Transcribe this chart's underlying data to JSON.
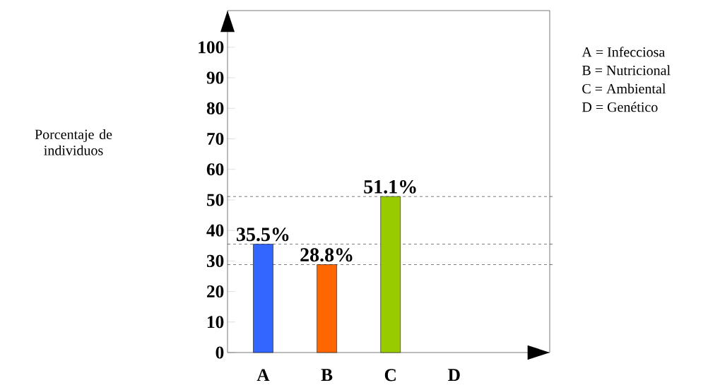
{
  "chart_data": {
    "type": "bar",
    "categories": [
      "A",
      "B",
      "C",
      "D"
    ],
    "values": [
      35.5,
      28.8,
      51.1,
      null
    ],
    "colors": [
      "#3366ff",
      "#ff6600",
      "#99cc00",
      "#999999"
    ],
    "value_labels": [
      "35.5%",
      "28.8%",
      "51.1%",
      null
    ],
    "ylim": [
      0,
      112
    ],
    "yticks": [
      0,
      10,
      20,
      30,
      40,
      50,
      60,
      70,
      80,
      90,
      100
    ],
    "ref_lines": [
      {
        "axis": "y",
        "value": 51.1,
        "line_style": "dashed"
      },
      {
        "axis": "y",
        "value": 35.5,
        "line_style": "dashed"
      },
      {
        "axis": "y",
        "value": 28.8,
        "line_style": "dashed"
      }
    ],
    "annotations": [
      "Porcentaje de individuos",
      "A = Infecciosa",
      "B = Nutricional",
      "C = Ambiental",
      "D = Genético"
    ]
  }
}
